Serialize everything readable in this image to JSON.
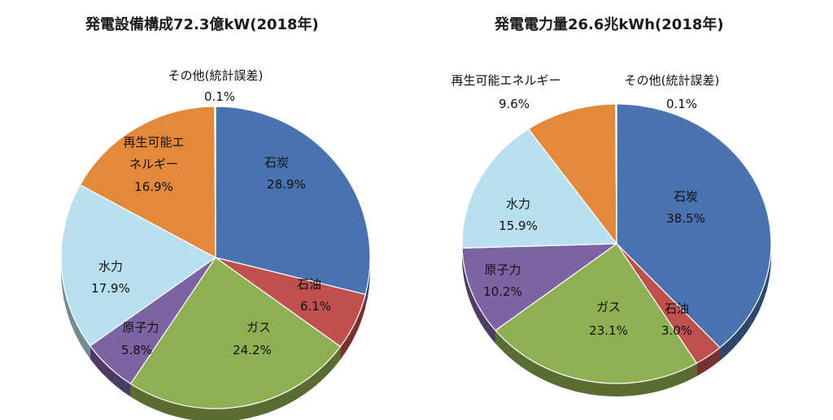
{
  "chart_data": [
    {
      "type": "pie",
      "title": "発電設備構成72.3億kW(2018年)",
      "slices": [
        {
          "label": "石炭",
          "value": 28.9,
          "value_label": "28.9%",
          "color": "#4a72b0"
        },
        {
          "label": "石油",
          "value": 6.1,
          "value_label": "6.1%",
          "color": "#c0504d"
        },
        {
          "label": "ガス",
          "value": 24.2,
          "value_label": "24.2%",
          "color": "#8fb052"
        },
        {
          "label": "原子力",
          "value": 5.8,
          "value_label": "5.8%",
          "color": "#7c63a3"
        },
        {
          "label": "水力",
          "value": 17.9,
          "value_label": "17.9%",
          "color": "#b8e0ef"
        },
        {
          "label": "再生可能エネルギー",
          "label_lines": [
            "再生可能エ",
            "ネルギー"
          ],
          "value": 16.9,
          "value_label": "16.9%",
          "color": "#e2893c"
        },
        {
          "label": "その他(統計誤差)",
          "value": 0.1,
          "value_label": "0.1%",
          "color": "#cfcfcf"
        }
      ]
    },
    {
      "type": "pie",
      "title": "発電電力量26.6兆kWh(2018年)",
      "slices": [
        {
          "label": "石炭",
          "value": 38.5,
          "value_label": "38.5%",
          "color": "#4a72b0"
        },
        {
          "label": "石油",
          "value": 3.0,
          "value_label": "3.0%",
          "color": "#c0504d"
        },
        {
          "label": "ガス",
          "value": 23.1,
          "value_label": "23.1%",
          "color": "#8fb052"
        },
        {
          "label": "原子力",
          "value": 10.2,
          "value_label": "10.2%",
          "color": "#7c63a3"
        },
        {
          "label": "水力",
          "value": 15.9,
          "value_label": "15.9%",
          "color": "#b8e0ef"
        },
        {
          "label": "再生可能エネルギー",
          "label_lines": [
            "再生可能エネルギー"
          ],
          "value": 9.6,
          "value_label": "9.6%",
          "color": "#e2893c"
        },
        {
          "label": "その他(統計誤差)",
          "value": 0.1,
          "value_label": "0.1%",
          "color": "#cfcfcf"
        }
      ]
    }
  ]
}
